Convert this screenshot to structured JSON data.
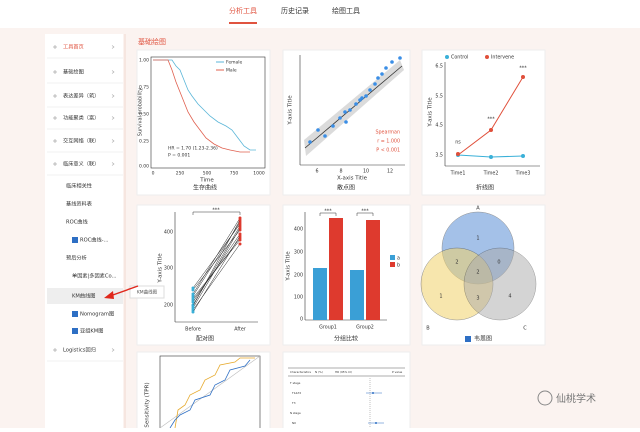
{
  "tabs": [
    "分析工具",
    "历史记录",
    "绘图工具"
  ],
  "sidebar": {
    "items": [
      "工具首页",
      "基础绘图",
      "表达差异（筑）",
      "功能聚类（富）",
      "交互网络（联）",
      "临床意义（联）",
      "临床相关性",
      "基线资料表",
      "ROC曲线",
      "ROC曲线-...",
      "预后分析",
      "单因素|多因素Co...",
      "KM曲线图",
      "Nomogram图",
      "亚组KM图",
      "Logistics回归"
    ],
    "tooltip": "KM曲线图"
  },
  "section_title": "基础绘图",
  "cards": {
    "survival": {
      "caption": "生存曲线",
      "legend": [
        "Female",
        "Male"
      ],
      "hr": "HR = 1.70 (1.23-2.36)",
      "p": "P = 0.001",
      "ylabel": "Survival probability",
      "xlabel": "Time",
      "yticks": [
        "1.00",
        "0.75",
        "0.50",
        "0.25",
        "0.00"
      ],
      "xticks": [
        "0",
        "250",
        "500",
        "750",
        "1000"
      ]
    },
    "scatter": {
      "caption": "散点图",
      "xlabel": "X-axis Title",
      "ylabel": "Y-axis Title",
      "xticks": [
        "6",
        "8",
        "10",
        "12"
      ],
      "stats": [
        "Spearman",
        "r = 1.000",
        "P < 0.001"
      ]
    },
    "line": {
      "caption": "折线图",
      "legend": [
        "Control",
        "Intervene"
      ],
      "ylabel": "Y-axis Title",
      "yticks": [
        "6.5",
        "5.5",
        "4.5",
        "3.5"
      ],
      "xticks": [
        "Time1",
        "Time2",
        "Time3"
      ],
      "sig": [
        "ns",
        "***",
        "***"
      ]
    },
    "paired": {
      "caption": "配对图",
      "ylabel": "Y-axis Title",
      "yticks": [
        "400",
        "300",
        "200"
      ],
      "xticks": [
        "Before",
        "After"
      ],
      "sig": "***"
    },
    "group": {
      "caption": "分组比较",
      "ylabel": "Y-axis Title",
      "yticks": [
        "400",
        "300",
        "200",
        "100",
        "0"
      ],
      "xticks": [
        "Group1",
        "Group2"
      ],
      "legend": [
        "a",
        "b"
      ],
      "sig": [
        "***",
        "***"
      ]
    },
    "venn": {
      "caption": "韦恩图",
      "sets": [
        "A",
        "B",
        "C"
      ],
      "counts": [
        "1",
        "2",
        "2",
        "0",
        "1",
        "3",
        "4"
      ]
    },
    "roc": {
      "ylabel": "Sensitivity (TPR)"
    },
    "forest": {
      "headers": [
        "Characteristics",
        "N (%)",
        "HR (95% CI)",
        "P value"
      ],
      "rows": [
        "T stage",
        "T1&T2",
        "T3",
        "N stage",
        "N0"
      ]
    }
  },
  "watermark": "仙桃学术"
}
